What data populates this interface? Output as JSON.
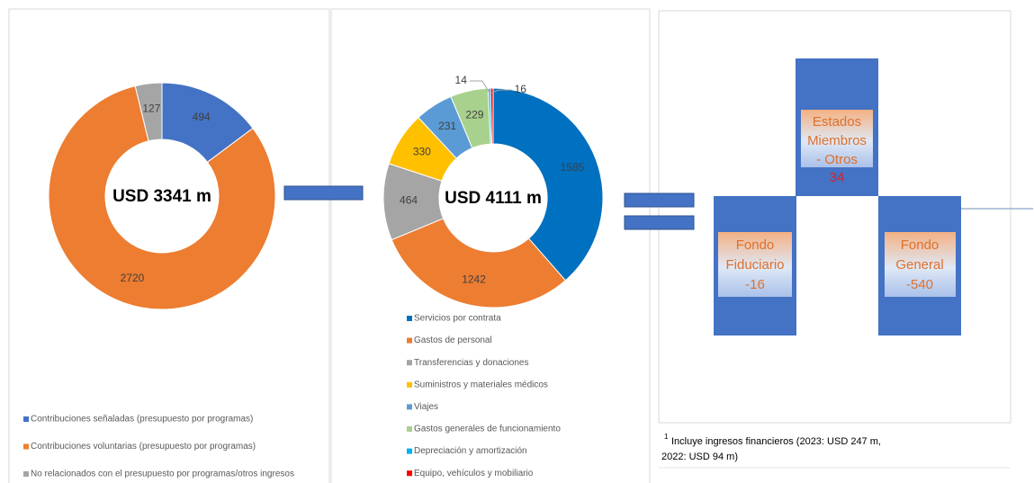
{
  "chart_data": [
    {
      "type": "pie",
      "center_label": "USD 3341 m",
      "categories": [
        "Contribuciones señaladas (presupuesto por programas)",
        "Contribuciones voluntarias (presupuesto por programas)",
        "No relacionados con el presupuesto por programas/otros ingresos"
      ],
      "values": [
        494,
        2720,
        127
      ],
      "colors": [
        "#4472c4",
        "#ed7d31",
        "#a5a5a5"
      ]
    },
    {
      "type": "pie",
      "center_label": "USD 4111 m",
      "categories": [
        "Servicios por contrata",
        "Gastos de personal",
        "Transferencias y donaciones",
        "Suministros y materiales médicos",
        "Viajes",
        "Gastos generales de funcionamiento",
        "Depreciación y amortización",
        "Equipo, vehículos y mobiliario"
      ],
      "values": [
        1585,
        1242,
        464,
        330,
        231,
        229,
        14,
        16
      ],
      "colors": [
        "#0070c0",
        "#ed7d31",
        "#a5a5a5",
        "#ffc000",
        "#5b9bd5",
        "#a9d18e",
        "#00b0f0",
        "#ff0000"
      ]
    }
  ],
  "diagram": {
    "boxes": [
      {
        "label": [
          "Estados",
          "Miembros",
          "- Otros"
        ],
        "value": "34"
      },
      {
        "label": [
          "Fondo",
          "Fiduciario"
        ],
        "value": "-16"
      },
      {
        "label": [
          "Fondo",
          "General"
        ],
        "value": "-540"
      }
    ],
    "footnote_marker": "1",
    "footnote": [
      "Incluye ingresos financieros (2023: USD 247 m,",
      "2022:  USD 94 m)"
    ]
  }
}
